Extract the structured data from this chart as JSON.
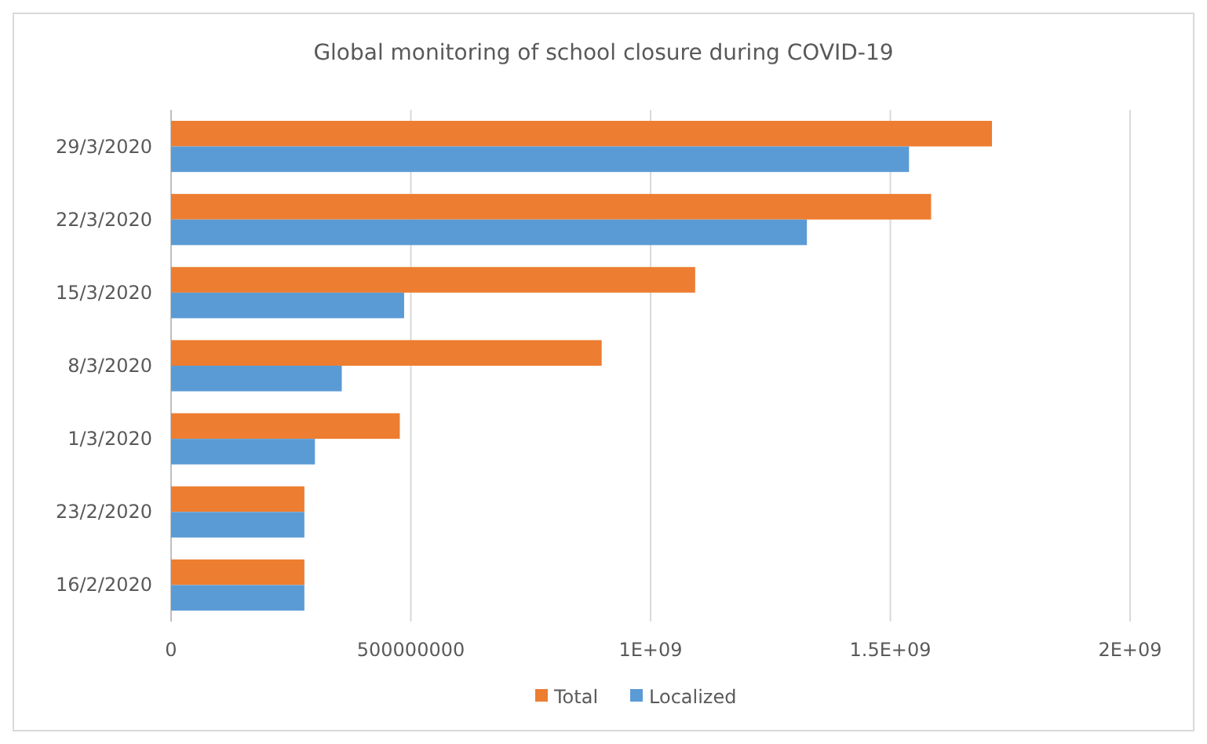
{
  "chart_data": {
    "type": "bar",
    "orientation": "horizontal",
    "title": "Global monitoring of school closure during COVID-19",
    "categories": [
      "29/3/2020",
      "22/3/2020",
      "15/3/2020",
      "8/3/2020",
      "1/3/2020",
      "23/2/2020",
      "16/2/2020"
    ],
    "series": [
      {
        "name": "Total",
        "color": "#ed7d31",
        "values": [
          1712000000,
          1585000000,
          1093000000,
          898000000,
          477000000,
          278000000,
          278000000
        ]
      },
      {
        "name": "Localized",
        "color": "#5b9bd5",
        "values": [
          1539000000,
          1326000000,
          486000000,
          356000000,
          300000000,
          278000000,
          278000000
        ]
      }
    ],
    "xlim": [
      0,
      2000000000
    ],
    "xticks": [
      0,
      {
        "value": 500000000,
        "label": "500000000"
      },
      {
        "value": 1000000000,
        "label": "1E+09"
      },
      {
        "value": 1500000000,
        "label": "1.5E+09"
      },
      {
        "value": 2000000000,
        "label": "2E+09"
      }
    ],
    "grid": "x",
    "legend": "bottom"
  }
}
